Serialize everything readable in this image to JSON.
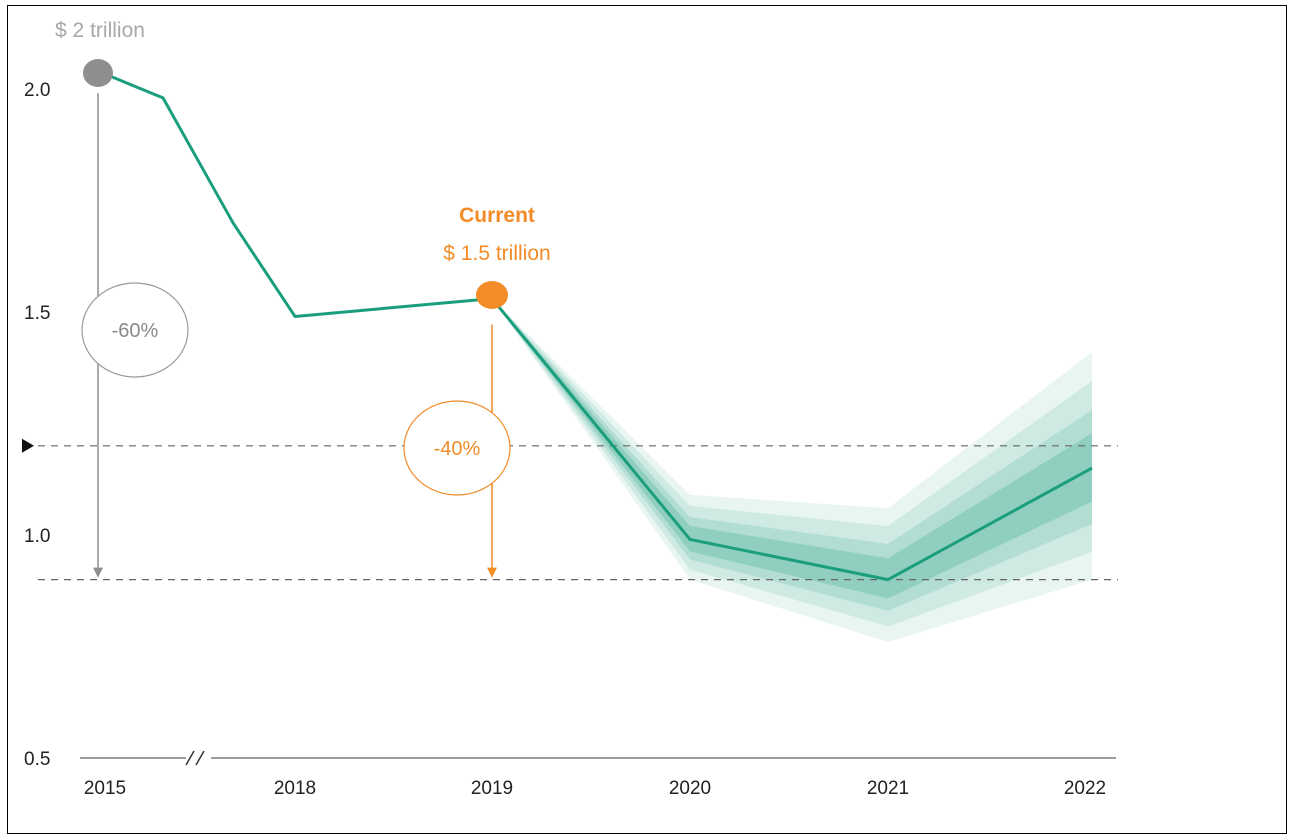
{
  "chart_data": {
    "type": "line",
    "x": [
      "2015",
      "2018",
      "2019",
      "2020",
      "2021",
      "2022"
    ],
    "ylim": [
      0.5,
      2.1
    ],
    "yticks": [
      "0.5",
      "1.0",
      "1.5",
      "2.0"
    ],
    "series": [
      {
        "points": [
          {
            "x": "2015",
            "y": 2.04
          },
          {
            "x": "2015.33",
            "y": 1.98
          },
          {
            "x": "2015.67",
            "y": 1.7
          },
          {
            "x": "2018",
            "y": 1.49
          },
          {
            "x": "2019",
            "y": 1.53
          },
          {
            "x": "2020",
            "y": 0.99
          },
          {
            "x": "2021",
            "y": 0.9
          },
          {
            "x": "2022",
            "y": 1.15
          }
        ]
      }
    ],
    "uncertainty_band": {
      "outer_upper": [
        {
          "x": "2019",
          "y": 1.53
        },
        {
          "x": "2020",
          "y": 1.09
        },
        {
          "x": "2021",
          "y": 1.06
        },
        {
          "x": "2022",
          "y": 1.41
        }
      ],
      "outer_lower": [
        {
          "x": "2019",
          "y": 1.53
        },
        {
          "x": "2020",
          "y": 0.9
        },
        {
          "x": "2021",
          "y": 0.76
        },
        {
          "x": "2022",
          "y": 0.9
        }
      ]
    },
    "reference_lines": [
      {
        "y": 1.2,
        "style": "dashed",
        "marker": "arrow"
      },
      {
        "y": 0.9,
        "style": "dashed"
      }
    ],
    "annotations": {
      "start_value": "$ 2 trillion",
      "current_label": "Current",
      "current_value": "$ 1.5 trillion",
      "drop_2015": "-60%",
      "drop_current": "-40%"
    },
    "axis_break": true,
    "colors": {
      "line": "#1a9e7e",
      "band": "#1a9e7e",
      "current": "#f28c28",
      "start": "#8e8e8e",
      "reference": "#666666"
    }
  }
}
